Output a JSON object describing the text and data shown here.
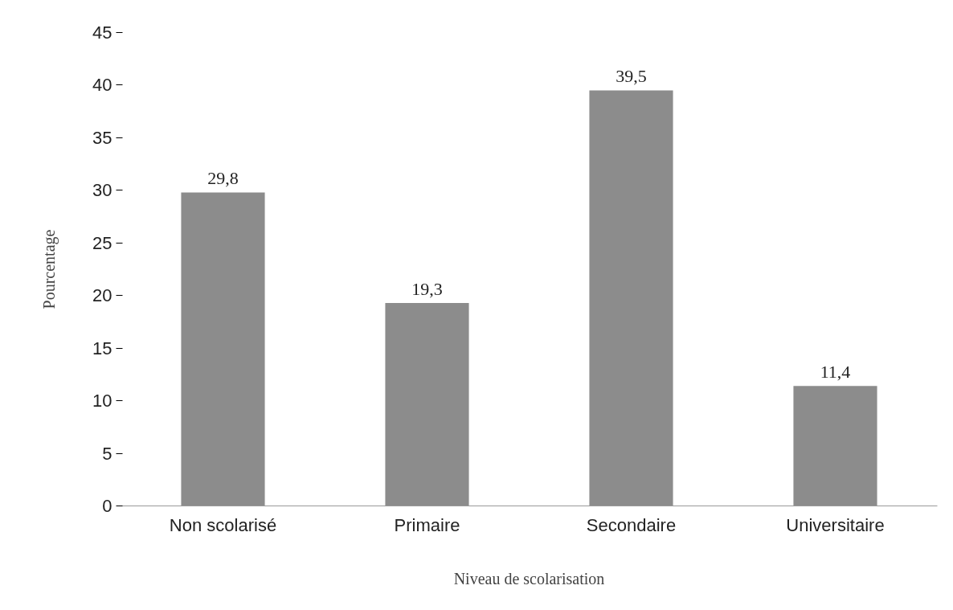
{
  "chart_data": {
    "type": "bar",
    "xlabel": "Niveau de scolarisation",
    "ylabel": "Pourcentage",
    "categories": [
      "Non scolarisé",
      "Primaire",
      "Secondaire",
      "Universitaire"
    ],
    "values": [
      29.8,
      19.3,
      39.5,
      11.4
    ],
    "value_labels": [
      "29,8",
      "19,3",
      "39,5",
      "11,4"
    ],
    "color": "#8c8c8c",
    "ylim": [
      0,
      45
    ],
    "yticks": [
      0,
      5,
      10,
      15,
      20,
      25,
      30,
      35,
      40,
      45
    ],
    "grid": false
  }
}
